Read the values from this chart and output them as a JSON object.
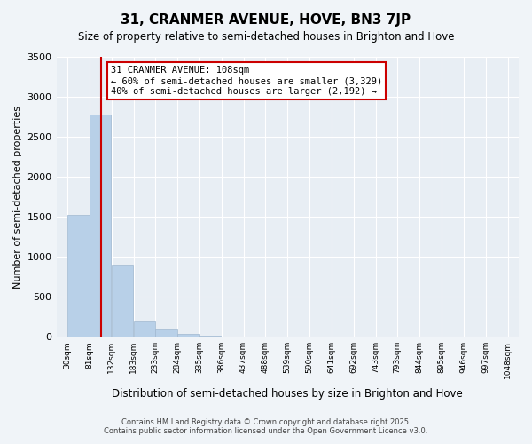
{
  "title": "31, CRANMER AVENUE, HOVE, BN3 7JP",
  "subtitle": "Size of property relative to semi-detached houses in Brighton and Hove",
  "xlabel": "Distribution of semi-detached houses by size in Brighton and Hove",
  "ylabel": "Number of semi-detached properties",
  "footnote1": "Contains HM Land Registry data © Crown copyright and database right 2025.",
  "footnote2": "Contains public sector information licensed under the Open Government Licence v3.0.",
  "bins": [
    30,
    81,
    132,
    183,
    233,
    284,
    335,
    386,
    437,
    488,
    539,
    590,
    641,
    692,
    743,
    793,
    844,
    895,
    946,
    997,
    1048
  ],
  "bin_labels": [
    "30sqm",
    "81sqm",
    "132sqm",
    "183sqm",
    "233sqm",
    "284sqm",
    "335sqm",
    "386sqm",
    "437sqm",
    "488sqm",
    "539sqm",
    "590sqm",
    "641sqm",
    "692sqm",
    "743sqm",
    "793sqm",
    "844sqm",
    "895sqm",
    "946sqm",
    "997sqm",
    "1048sqm"
  ],
  "values": [
    1520,
    2780,
    900,
    190,
    90,
    30,
    10,
    5,
    3,
    2,
    1,
    1,
    0,
    0,
    0,
    0,
    0,
    0,
    0,
    0
  ],
  "bar_color": "#b8d0e8",
  "bar_edge_color": "#a0b8d0",
  "red_line_x": 108,
  "annotation_title": "31 CRANMER AVENUE: 108sqm",
  "annotation_line2": "← 60% of semi-detached houses are smaller (3,329)",
  "annotation_line3": "40% of semi-detached houses are larger (2,192) →",
  "ylim": [
    0,
    3500
  ],
  "yticks": [
    0,
    500,
    1000,
    1500,
    2000,
    2500,
    3000,
    3500
  ],
  "bg_color": "#f0f4f8",
  "plot_bg_color": "#e8eef4",
  "grid_color": "#ffffff",
  "red_color": "#cc0000"
}
